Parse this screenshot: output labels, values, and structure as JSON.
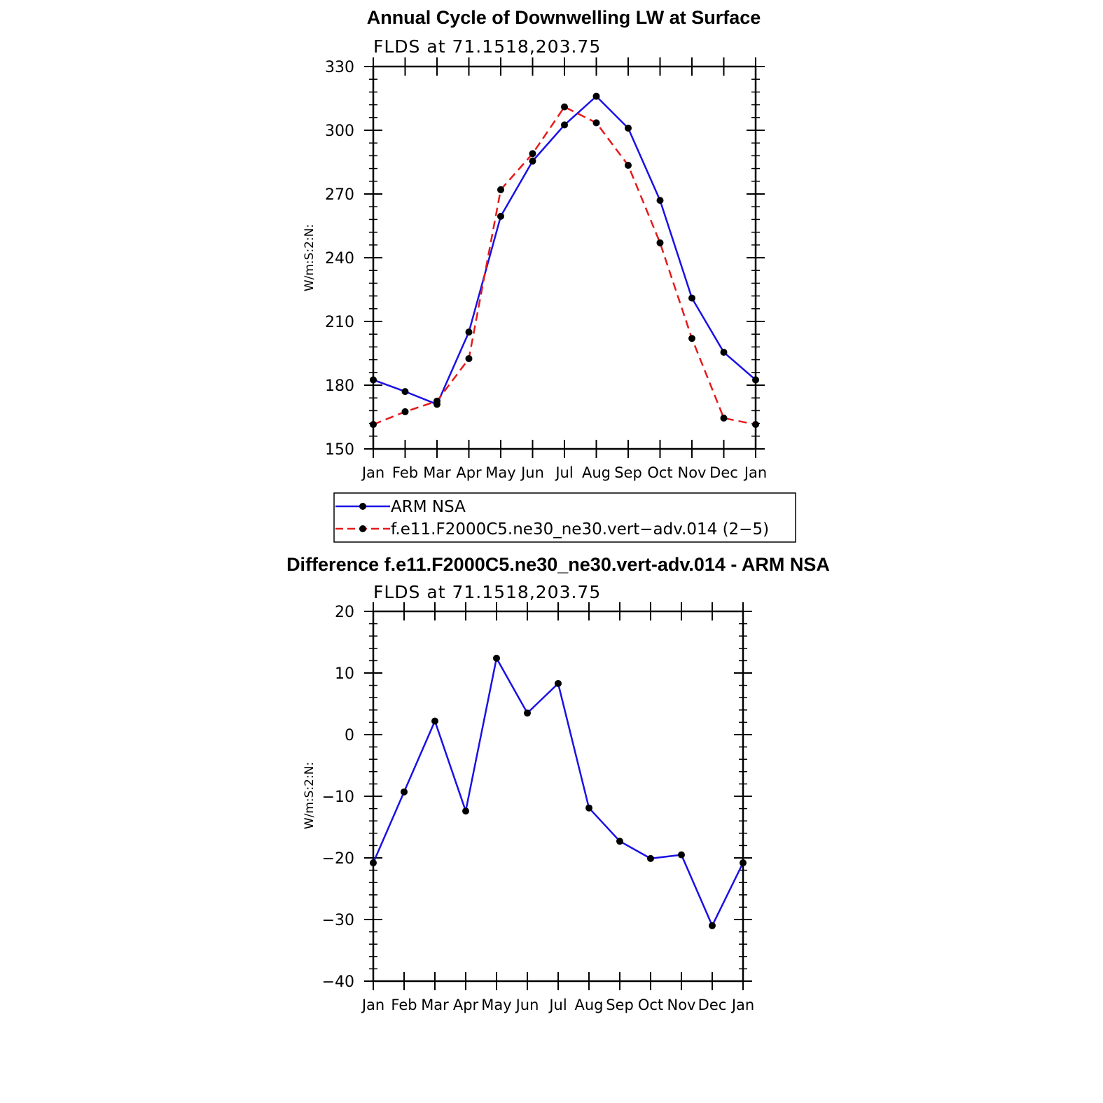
{
  "chart_data": [
    {
      "type": "line",
      "title": "Annual Cycle of Downwelling LW at Surface",
      "subtitle": "FLDS at 71.1518,203.75",
      "ylabel": "W/m:S:2:N:",
      "xlabel": "",
      "categories": [
        "Jan",
        "Feb",
        "Mar",
        "Apr",
        "May",
        "Jun",
        "Jul",
        "Aug",
        "Sep",
        "Oct",
        "Nov",
        "Dec",
        "Jan"
      ],
      "ylim": [
        150,
        330
      ],
      "yticks": [
        "150",
        "180",
        "210",
        "240",
        "270",
        "300",
        "330"
      ],
      "grid": false,
      "legend_position": "below",
      "series": [
        {
          "name": "ARM NSA",
          "color": "#1a10e6",
          "style": "solid",
          "values": [
            182.5,
            177,
            171,
            205,
            259.5,
            285.5,
            302.5,
            316,
            301,
            267,
            221,
            195.5,
            182.5
          ]
        },
        {
          "name": "f.e11.F2000C5.ne30_ne30.vert−adv.014 (2−5)",
          "color": "#e61a1a",
          "style": "dashed",
          "values": [
            161.5,
            167.5,
            172.5,
            192.5,
            272,
            289,
            311,
            303.5,
            283.5,
            247,
            202,
            164.5,
            161.5
          ]
        }
      ]
    },
    {
      "type": "line",
      "title": "Difference f.e11.F2000C5.ne30_ne30.vert-adv.014 - ARM NSA",
      "subtitle": "FLDS at 71.1518,203.75",
      "ylabel": "W/m:S:2:N:",
      "xlabel": "",
      "categories": [
        "Jan",
        "Feb",
        "Mar",
        "Apr",
        "May",
        "Jun",
        "Jul",
        "Aug",
        "Sep",
        "Oct",
        "Nov",
        "Dec",
        "Jan"
      ],
      "ylim": [
        -40,
        20
      ],
      "yticks": [
        "−40",
        "−30",
        "−20",
        "−10",
        "0",
        "10",
        "20"
      ],
      "grid": false,
      "series": [
        {
          "color": "#1a10e6",
          "style": "solid",
          "values": [
            -20.8,
            -9.3,
            2.2,
            -12.4,
            12.4,
            3.5,
            8.3,
            -11.9,
            -17.3,
            -20.1,
            -19.5,
            -31.0,
            -20.8
          ]
        }
      ]
    }
  ]
}
